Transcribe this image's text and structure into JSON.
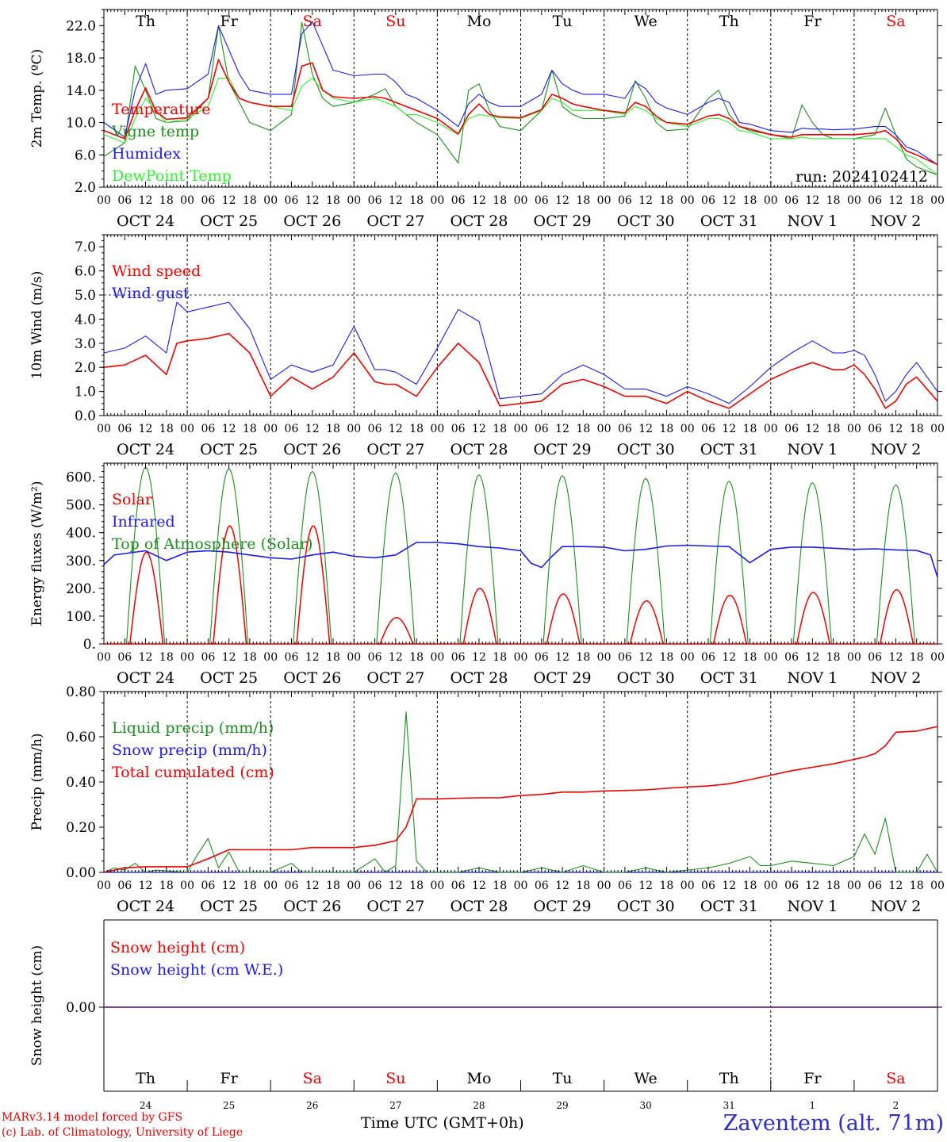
{
  "chart_data": [
    {
      "type": "line",
      "ylabel": "2m Temp. (ºC)",
      "ylim": [
        2,
        24
      ],
      "yticks": [
        "22.0",
        "18.0",
        "14.0",
        "10.0",
        "6.0",
        "2.0"
      ],
      "day_labels": [
        "Th",
        "Fr",
        "Sa",
        "Su",
        "Mo",
        "Tu",
        "We",
        "Th",
        "Fr",
        "Sa"
      ],
      "weekend_days": [
        2,
        3,
        9
      ],
      "date_labels": [
        "OCT 24",
        "OCT 25",
        "OCT 26",
        "OCT 27",
        "OCT 28",
        "OCT 29",
        "OCT 30",
        "OCT 31",
        "NOV  1",
        "NOV  2"
      ],
      "hour_labels": [
        "00",
        "06",
        "12",
        "18"
      ],
      "annotation": "run: 2024102412",
      "x_hours": [
        0,
        6,
        9,
        12,
        15,
        18,
        24,
        30,
        33,
        36,
        39,
        42,
        48,
        54,
        57,
        60,
        63,
        66,
        72,
        78,
        81,
        84,
        87,
        90,
        96,
        102,
        105,
        108,
        111,
        114,
        120,
        126,
        129,
        132,
        135,
        138,
        144,
        150,
        153,
        156,
        159,
        162,
        168,
        174,
        177,
        180,
        183,
        186,
        192,
        198,
        201,
        204,
        207,
        210,
        216,
        222,
        225,
        228,
        231,
        234,
        240
      ],
      "series": [
        {
          "name": "Temperature",
          "color": "#ee0000",
          "values": [
            9.0,
            8.0,
            11.5,
            14.3,
            11.4,
            10.4,
            10.6,
            13.0,
            17.8,
            15.0,
            13.0,
            12.5,
            12.0,
            12.0,
            17.0,
            17.4,
            14.0,
            13.2,
            13.0,
            13.2,
            13.0,
            12.5,
            12.0,
            11.5,
            10.5,
            8.6,
            11.0,
            12.3,
            11.0,
            10.7,
            10.6,
            11.6,
            13.5,
            13.0,
            12.3,
            12.0,
            11.5,
            11.2,
            12.5,
            12.0,
            10.8,
            10.0,
            9.8,
            10.8,
            11.0,
            10.5,
            9.5,
            9.2,
            8.5,
            8.2,
            8.5,
            8.5,
            8.5,
            8.5,
            8.5,
            8.7,
            9.0,
            8.0,
            6.5,
            6.0,
            4.8
          ]
        },
        {
          "name": "Vigne temp",
          "color": "#1e8c1e",
          "values": [
            5.8,
            7.5,
            17.0,
            14.0,
            10.5,
            10.0,
            10.2,
            13.0,
            22.0,
            15.0,
            12.5,
            10.0,
            9.0,
            11.0,
            22.4,
            16.0,
            13.0,
            12.0,
            12.5,
            13.5,
            14.2,
            12.0,
            11.0,
            10.0,
            8.5,
            5.0,
            14.0,
            14.8,
            11.5,
            9.5,
            9.0,
            11.5,
            16.5,
            12.0,
            11.0,
            10.5,
            10.5,
            10.8,
            15.2,
            13.0,
            10.0,
            9.0,
            9.2,
            13.0,
            14.0,
            11.0,
            9.5,
            9.0,
            8.5,
            8.0,
            12.2,
            10.0,
            8.5,
            8.0,
            8.0,
            8.5,
            11.8,
            8.5,
            5.5,
            4.5,
            3.5
          ]
        },
        {
          "name": "Humidex",
          "color": "#1a1aee",
          "values": [
            10.0,
            8.2,
            14.0,
            17.3,
            13.5,
            14.0,
            14.2,
            16.0,
            22.0,
            19.0,
            16.0,
            14.0,
            13.5,
            13.5,
            21.0,
            22.5,
            19.5,
            16.5,
            15.8,
            16.0,
            16.0,
            15.0,
            13.5,
            13.0,
            11.5,
            9.5,
            12.3,
            13.5,
            12.5,
            12.0,
            12.0,
            13.5,
            16.5,
            14.8,
            14.0,
            13.5,
            13.5,
            13.0,
            15.0,
            14.2,
            12.5,
            11.8,
            11.0,
            12.5,
            13.0,
            12.5,
            10.0,
            9.8,
            9.0,
            8.8,
            9.3,
            9.2,
            9.2,
            9.1,
            9.2,
            9.5,
            9.5,
            8.5,
            7.0,
            6.5,
            4.8
          ]
        },
        {
          "name": "DewPoint Temp",
          "color": "#33ee33",
          "values": [
            8.5,
            7.5,
            10.5,
            13.0,
            11.5,
            10.0,
            10.5,
            12.0,
            15.5,
            15.5,
            13.0,
            12.5,
            12.0,
            11.5,
            14.5,
            15.5,
            14.0,
            13.0,
            12.5,
            13.0,
            12.5,
            12.0,
            11.0,
            11.0,
            10.0,
            8.5,
            10.5,
            11.0,
            10.8,
            10.6,
            10.5,
            11.5,
            13.0,
            12.5,
            11.5,
            11.5,
            11.5,
            11.0,
            12.0,
            11.5,
            10.5,
            10.0,
            9.5,
            10.5,
            10.5,
            10.0,
            9.0,
            8.8,
            8.0,
            8.0,
            8.2,
            8.0,
            8.0,
            8.0,
            8.0,
            8.0,
            8.0,
            7.0,
            6.0,
            5.5,
            3.5
          ]
        }
      ]
    },
    {
      "type": "line",
      "ylabel": "10m Wind (m/s)",
      "ylim": [
        0,
        7.5
      ],
      "yticks": [
        "7.0",
        "6.0",
        "5.0",
        "4.0",
        "3.0",
        "2.0",
        "1.0",
        "0.0"
      ],
      "date_labels": [
        "OCT 24",
        "OCT 25",
        "OCT 26",
        "OCT 27",
        "OCT 28",
        "OCT 29",
        "OCT 30",
        "OCT 31",
        "NOV  1",
        "NOV  2"
      ],
      "hour_labels": [
        "00",
        "06",
        "12",
        "18"
      ],
      "reference_line": 5.0,
      "x_hours": [
        0,
        6,
        12,
        18,
        21,
        24,
        30,
        36,
        42,
        48,
        54,
        60,
        66,
        72,
        78,
        81,
        84,
        90,
        96,
        102,
        108,
        114,
        120,
        126,
        132,
        138,
        144,
        150,
        156,
        162,
        168,
        174,
        180,
        186,
        192,
        198,
        204,
        210,
        213,
        216,
        219,
        222,
        225,
        228,
        231,
        234,
        240
      ],
      "series": [
        {
          "name": "Wind speed",
          "color": "#ee0000",
          "values": [
            2.0,
            2.1,
            2.5,
            1.7,
            3.0,
            3.1,
            3.2,
            3.4,
            2.6,
            0.8,
            1.6,
            1.1,
            1.6,
            2.6,
            1.4,
            1.3,
            1.3,
            0.8,
            2.0,
            3.0,
            2.2,
            0.4,
            0.5,
            0.6,
            1.3,
            1.5,
            1.2,
            0.8,
            0.8,
            0.5,
            1.0,
            0.6,
            0.3,
            0.9,
            1.5,
            1.9,
            2.2,
            1.9,
            1.9,
            2.1,
            1.7,
            1.1,
            0.3,
            0.6,
            1.3,
            1.6,
            0.6
          ]
        },
        {
          "name": "Wind gust",
          "color": "#1a1aee",
          "values": [
            2.6,
            2.8,
            3.3,
            2.6,
            4.7,
            4.3,
            4.5,
            4.7,
            3.6,
            1.5,
            2.1,
            1.8,
            2.1,
            3.7,
            1.9,
            1.9,
            1.8,
            1.3,
            2.8,
            4.4,
            3.9,
            0.7,
            0.8,
            0.9,
            1.7,
            2.1,
            1.7,
            1.1,
            1.1,
            0.8,
            1.2,
            0.9,
            0.5,
            1.2,
            2.0,
            2.6,
            3.1,
            2.6,
            2.6,
            2.7,
            2.5,
            1.7,
            0.6,
            1.0,
            1.7,
            2.2,
            1.0
          ]
        }
      ]
    },
    {
      "type": "line",
      "ylabel": "Energy fluxes (W/m²)",
      "ylim": [
        0,
        650
      ],
      "yticks": [
        "600.",
        "500.",
        "400.",
        "300.",
        "200.",
        "100.",
        "0."
      ],
      "date_labels": [
        "OCT 24",
        "OCT 25",
        "OCT 26",
        "OCT 27",
        "OCT 28",
        "OCT 29",
        "OCT 30",
        "OCT 31",
        "NOV  1",
        "NOV  2"
      ],
      "hour_labels": [
        "00",
        "06",
        "12",
        "18"
      ],
      "day_peaks_toa": [
        635,
        630,
        620,
        615,
        608,
        605,
        595,
        585,
        580,
        572
      ],
      "day_peaks_solar": [
        330,
        425,
        425,
        95,
        200,
        180,
        155,
        175,
        185,
        195
      ],
      "series": [
        {
          "name": "Solar",
          "color": "#ee0000"
        },
        {
          "name": "Infrared",
          "color": "#1a1aee",
          "x_hours": [
            0,
            3,
            6,
            12,
            18,
            24,
            30,
            36,
            42,
            48,
            54,
            60,
            66,
            72,
            78,
            84,
            90,
            96,
            102,
            108,
            114,
            120,
            123,
            126,
            129,
            132,
            138,
            144,
            150,
            156,
            162,
            168,
            174,
            180,
            186,
            192,
            198,
            204,
            210,
            216,
            222,
            228,
            234,
            238,
            240
          ],
          "values": [
            285,
            320,
            325,
            335,
            300,
            330,
            335,
            330,
            320,
            310,
            305,
            320,
            330,
            315,
            310,
            320,
            365,
            365,
            360,
            350,
            345,
            335,
            290,
            275,
            315,
            350,
            350,
            348,
            335,
            340,
            352,
            355,
            352,
            350,
            292,
            340,
            348,
            348,
            344,
            340,
            342,
            338,
            336,
            320,
            240
          ]
        },
        {
          "name": "Top of Atmosphere (Solar)",
          "color": "#1e8c1e"
        }
      ]
    },
    {
      "type": "line",
      "ylabel": "Precip (mm/h)",
      "ylim": [
        0,
        0.8
      ],
      "yticks": [
        "0.80",
        "0.60",
        "0.40",
        "0.20",
        "0.00"
      ],
      "date_labels": [
        "OCT 24",
        "OCT 25",
        "OCT 26",
        "OCT 27",
        "OCT 28",
        "OCT 29",
        "OCT 30",
        "OCT 31",
        "NOV  1",
        "NOV  2"
      ],
      "hour_labels": [
        "00",
        "06",
        "12",
        "18"
      ],
      "series": [
        {
          "name": "Liquid precip (mm/h)",
          "color": "#1e8c1e",
          "x_hours": [
            0,
            3,
            6,
            9,
            12,
            15,
            24,
            27,
            30,
            33,
            36,
            39,
            42,
            48,
            54,
            57,
            60,
            72,
            78,
            81,
            84,
            87,
            90,
            93,
            96,
            102,
            108,
            114,
            120,
            126,
            132,
            138,
            144,
            150,
            156,
            162,
            168,
            174,
            180,
            186,
            189,
            192,
            198,
            204,
            210,
            216,
            219,
            222,
            225,
            228,
            234,
            237,
            240
          ],
          "values": [
            0.0,
            0.02,
            0.01,
            0.04,
            0.0,
            0.01,
            0.0,
            0.08,
            0.15,
            0.02,
            0.09,
            0.0,
            0.0,
            0.0,
            0.04,
            0.0,
            0.0,
            0.0,
            0.06,
            0.0,
            0.03,
            0.71,
            0.05,
            0.0,
            0.0,
            0.0,
            0.02,
            0.0,
            0.0,
            0.02,
            0.0,
            0.03,
            0.0,
            0.0,
            0.02,
            0.0,
            0.01,
            0.02,
            0.04,
            0.07,
            0.03,
            0.03,
            0.05,
            0.04,
            0.03,
            0.07,
            0.17,
            0.08,
            0.24,
            0.0,
            0.0,
            0.08,
            0.0
          ]
        },
        {
          "name": "Snow precip (mm/h)",
          "color": "#1a1aee"
        },
        {
          "name": "Total cumulated (cm)",
          "color": "#ee0000",
          "x_hours": [
            0,
            6,
            12,
            18,
            24,
            30,
            36,
            42,
            48,
            54,
            60,
            66,
            72,
            78,
            84,
            87,
            90,
            96,
            102,
            108,
            114,
            120,
            126,
            132,
            138,
            144,
            150,
            156,
            162,
            168,
            174,
            180,
            186,
            192,
            198,
            204,
            210,
            216,
            219,
            222,
            225,
            228,
            234,
            240
          ],
          "values": [
            0.0,
            0.02,
            0.025,
            0.025,
            0.025,
            0.06,
            0.1,
            0.1,
            0.1,
            0.1,
            0.11,
            0.11,
            0.11,
            0.12,
            0.14,
            0.2,
            0.325,
            0.325,
            0.328,
            0.33,
            0.33,
            0.34,
            0.345,
            0.355,
            0.355,
            0.36,
            0.362,
            0.365,
            0.372,
            0.378,
            0.382,
            0.392,
            0.41,
            0.43,
            0.45,
            0.465,
            0.48,
            0.5,
            0.51,
            0.525,
            0.56,
            0.62,
            0.625,
            0.645
          ]
        }
      ]
    },
    {
      "type": "line",
      "ylabel": "Snow height (cm)",
      "yticks": [
        "0.00"
      ],
      "day_labels": [
        "Th",
        "Fr",
        "Sa",
        "Su",
        "Mo",
        "Tu",
        "We",
        "Th",
        "Fr",
        "Sa"
      ],
      "weekend_days": [
        2,
        3,
        9
      ],
      "day_numbers": [
        "24",
        "25",
        "26",
        "27",
        "28",
        "29",
        "30",
        "31",
        "1",
        "2"
      ],
      "xlabel": "Time UTC (GMT+0h)",
      "series": [
        {
          "name": "Snow height (cm)",
          "color": "#ee0000",
          "values": [
            0,
            0
          ]
        },
        {
          "name": "Snow height (cm W.E.)",
          "color": "#1a1aee",
          "values": [
            0,
            0
          ]
        }
      ]
    }
  ],
  "footer": {
    "credit_line1": "MARv3.14 model forced by GFS",
    "credit_line2": "(c) Lab. of Climatology, University of Liege",
    "axis_title": "Time UTC (GMT+0h)",
    "station": "Zaventem (alt. 71m)"
  }
}
